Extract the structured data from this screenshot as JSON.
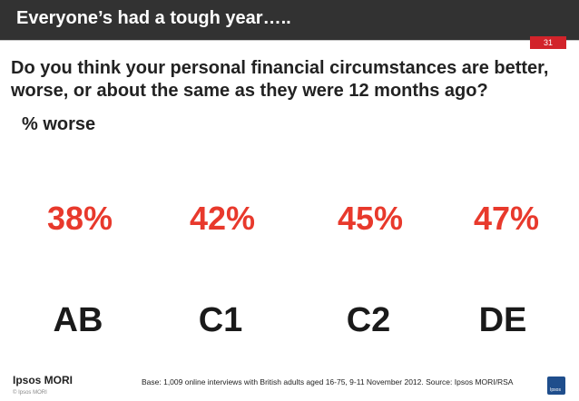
{
  "header": {
    "title": "Everyone’s had a tough year…..",
    "page_number": "31"
  },
  "question": "Do you think your personal financial circumstances are better, worse, or about the same as they were 12 months ago?",
  "metric_label": "% worse",
  "chart_data": {
    "type": "bar",
    "categories": [
      "AB",
      "C1",
      "C2",
      "DE"
    ],
    "values": [
      38,
      42,
      45,
      47
    ],
    "value_labels": [
      "38%",
      "42%",
      "45%",
      "47%"
    ],
    "unit": "%",
    "ylim": [
      0,
      100
    ],
    "colors": {
      "fill": "#f0527a",
      "empty": "#c4c2bd",
      "label": "#e8392c",
      "category": "#1a1a1a"
    }
  },
  "footer": {
    "logo": "Ipsos MORI",
    "copyright": "© Ipsos MORI",
    "base_note": "Base: 1,009 online interviews with British adults aged 16-75, 9-11 November 2012.  Source: Ipsos MORI/RSA",
    "mark_text": "Ipsos"
  },
  "colors": {
    "header_bg": "#323232",
    "badge": "#d2232a"
  }
}
